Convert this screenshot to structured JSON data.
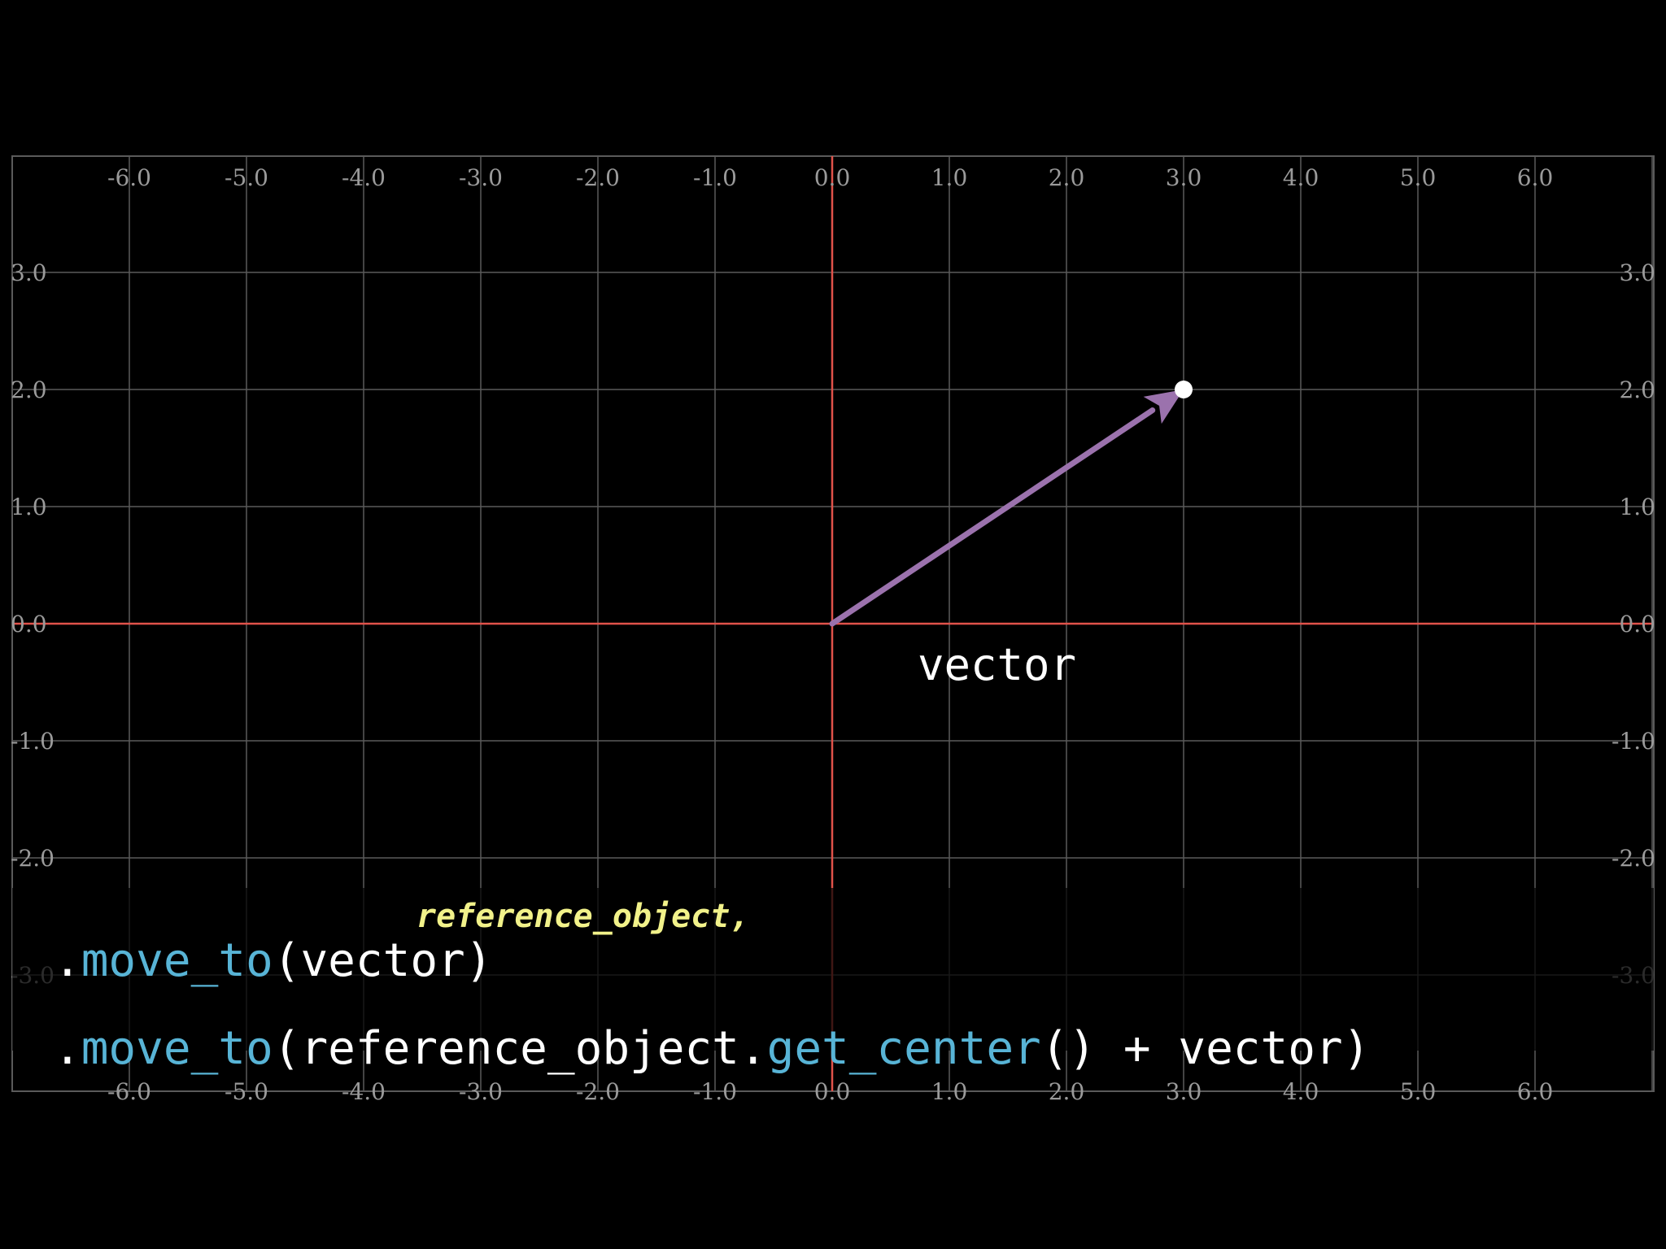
{
  "colors": {
    "background": "#000000",
    "grid": "#5a5a5a",
    "axis": "#e0524a",
    "tick_label": "#9a9a9a",
    "vector": "#9b72ad",
    "dot": "#ffffff",
    "code_text": "#ffffff",
    "code_function": "#58b4d6",
    "ghost_text": "#f2f28a"
  },
  "plane": {
    "x_ticks": [
      "-6.0",
      "-5.0",
      "-4.0",
      "-3.0",
      "-2.0",
      "-1.0",
      "0.0",
      "1.0",
      "2.0",
      "3.0",
      "4.0",
      "5.0",
      "6.0"
    ],
    "y_ticks": [
      "3.0",
      "2.0",
      "1.0",
      "0.0",
      "-1.0",
      "-2.0",
      "-3.0"
    ],
    "x_range": [
      -7,
      7
    ],
    "y_range": [
      -4,
      4
    ]
  },
  "vector": {
    "start": [
      0,
      0
    ],
    "end": [
      3,
      2
    ],
    "label": "vector"
  },
  "code": {
    "line1": {
      "dot": ".",
      "method": "move_to",
      "open": "(",
      "arg": "vector",
      "close": ")"
    },
    "ghost": "reference_object,",
    "line2": {
      "dot": ".",
      "method": "move_to",
      "open": "(",
      "arg1": "reference_object",
      "dot2": ".",
      "method2": "get_center",
      "parens": "()",
      "plus": " + ",
      "arg2": "vector",
      "close": ")"
    }
  }
}
